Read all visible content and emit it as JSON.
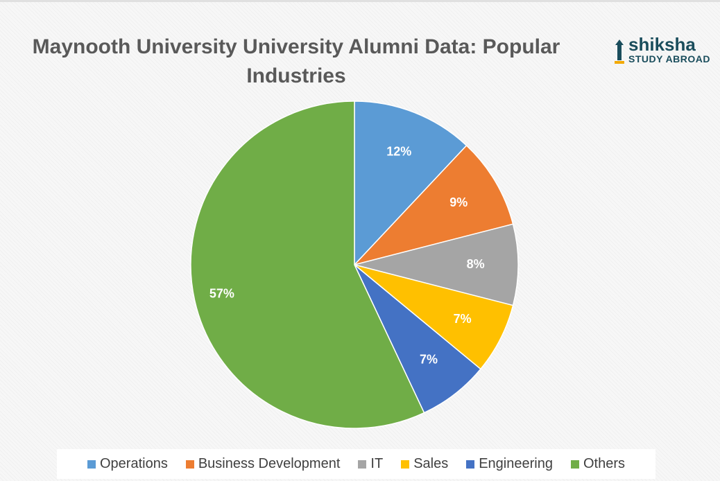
{
  "chart_data": {
    "type": "pie",
    "title": "Maynooth University University Alumni Data: Popular Industries",
    "categories": [
      "Operations",
      "Business Development",
      "IT",
      "Sales",
      "Engineering",
      "Others"
    ],
    "values": [
      12,
      9,
      8,
      7,
      7,
      57
    ],
    "value_labels": [
      "12%",
      "9%",
      "8%",
      "7%",
      "7%",
      "57%"
    ],
    "colors": [
      "#5b9bd5",
      "#ed7d31",
      "#a5a5a5",
      "#ffc000",
      "#4472c4",
      "#70ad47"
    ],
    "legend": "bottom"
  },
  "logo": {
    "name": "shiksha",
    "tagline": "STUDY ABROAD"
  }
}
